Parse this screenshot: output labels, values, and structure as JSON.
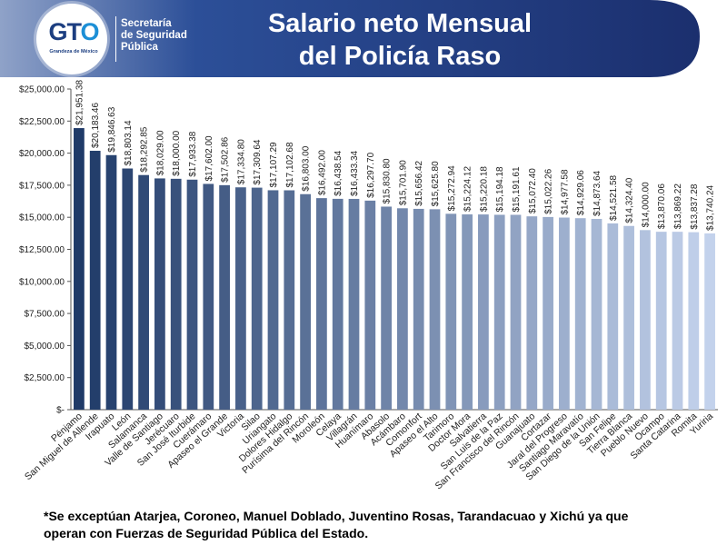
{
  "header": {
    "title_line1": "Salario neto Mensual",
    "title_line2": "del Policía Raso",
    "logo": {
      "wordmark": "GTO",
      "tagline": "Grandeza de México",
      "org_line1": "Secretaría",
      "org_line2": "de Seguridad",
      "org_line3": "Pública"
    },
    "colors": {
      "band_dark": "#1b2f6e",
      "band_mid": "#2c4f98",
      "band_light": "#8fa2c8"
    }
  },
  "footnote": {
    "line1": "*Se exceptúan Atarjea, Coroneo, Manuel Doblado, Juventino Rosas, Tarandacuao y Xichú ya que",
    "line2": "operan con Fuerzas de Seguridad Pública del Estado."
  },
  "chart_data": {
    "type": "bar",
    "title": "",
    "xlabel": "",
    "ylabel": "",
    "ylim": [
      0,
      25000
    ],
    "y_ticks": [
      0,
      2500,
      5000,
      7500,
      10000,
      12500,
      15000,
      17500,
      20000,
      22500,
      25000
    ],
    "y_tick_labels": [
      "$-",
      "$2,500.00",
      "$5,000.00",
      "$7,500.00",
      "$10,000.00",
      "$12,500.00",
      "$15,000.00",
      "$17,500.00",
      "$20,000.00",
      "$22,500.00",
      "$25,000.00"
    ],
    "grid": false,
    "legend": false,
    "bar_color_start": "#1f3a68",
    "bar_color_end": "#c3d2ec",
    "categories": [
      "Pénjamo",
      "San Miguel de Allende",
      "Irapuato",
      "León",
      "Salamanca",
      "Valle de Santiago",
      "Jerécuaro",
      "San José Iturbide",
      "Cuerámaro",
      "Apaseo el Grande",
      "Victoria",
      "Silao",
      "Uriangato",
      "Dolores Hidalgo",
      "Purísima del Rincón",
      "Moroleón",
      "Celaya",
      "Villagrán",
      "Huanímaro",
      "Abasolo",
      "Acámbaro",
      "Comonfort",
      "Apaseo el Alto",
      "Tarimoro",
      "Doctor Mora",
      "Salvatierra",
      "San Luis de la Paz",
      "San Francisco del Rincón",
      "Guanajuato",
      "Cortazar",
      "Jaral del Progreso",
      "Santiago Maravatío",
      "San Diego de la Unión",
      "San Felipe",
      "Tierra Blanca",
      "Pueblo Nuevo",
      "Ocampo",
      "Santa Catarina",
      "Romita",
      "Yuriria"
    ],
    "values": [
      21951.38,
      20183.46,
      19846.63,
      18803.14,
      18292.85,
      18029.0,
      18000.0,
      17933.38,
      17602.0,
      17502.86,
      17334.8,
      17309.64,
      17107.29,
      17102.68,
      16803.0,
      16492.0,
      16438.54,
      16433.34,
      16297.7,
      15830.8,
      15701.9,
      15656.42,
      15625.8,
      15272.94,
      15224.12,
      15220.18,
      15194.18,
      15191.61,
      15072.4,
      15022.26,
      14977.58,
      14929.06,
      14873.64,
      14521.58,
      14324.4,
      14000.0,
      13870.06,
      13869.22,
      13837.28,
      13740.24
    ],
    "value_labels": [
      "$21,951.38",
      "$20,183.46",
      "$19,846.63",
      "$18,803.14",
      "$18,292.85",
      "$18,029.00",
      "$18,000.00",
      "$17,933.38",
      "$17,602.00",
      "$17,502.86",
      "$17,334.80",
      "$17,309.64",
      "$17,107.29",
      "$17,102.68",
      "$16,803.00",
      "$16,492.00",
      "$16,438.54",
      "$16,433.34",
      "$16,297.70",
      "$15,830.80",
      "$15,701.90",
      "$15,656.42",
      "$15,625.80",
      "$15,272.94",
      "$15,224.12",
      "$15,220.18",
      "$15,194.18",
      "$15,191.61",
      "$15,072.40",
      "$15,022.26",
      "$14,977.58",
      "$14,929.06",
      "$14,873.64",
      "$14,521.58",
      "$14,324.40",
      "$14,000.00",
      "$13,870.06",
      "$13,869.22",
      "$13,837.28",
      "$13,740.24"
    ]
  }
}
